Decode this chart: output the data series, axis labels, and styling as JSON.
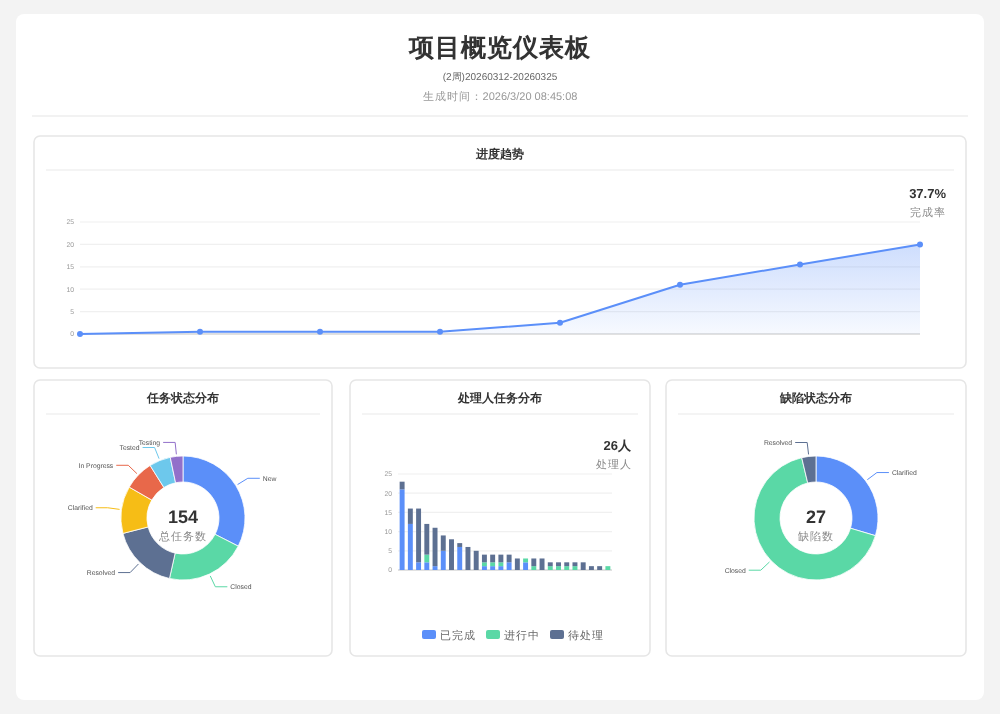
{
  "chart_data": [
    {
      "type": "other",
      "title": "项目概览仪表板",
      "subtitle": "(2周)20260312-20260325",
      "annotations": [
        "生成时间：2026/3/20 08:45:08"
      ]
    },
    {
      "type": "area",
      "title": "进度趋势",
      "categories": [
        null,
        null,
        null,
        null,
        null,
        null,
        null,
        null
      ],
      "values": [
        0,
        0.5,
        0.5,
        0.5,
        2.5,
        11,
        15.5,
        20
      ],
      "color": "#5b8ff9",
      "ylim": [
        0,
        25
      ],
      "yticks": [
        0,
        5,
        10,
        15,
        20,
        25
      ],
      "grid": "y",
      "marker": "circle",
      "annotations": [
        "37.7%",
        "完成率"
      ]
    },
    {
      "type": "donut",
      "title": "任务状态分布",
      "categories": [
        "New",
        "Closed",
        "Resolved",
        "Clarified",
        "In Progress",
        "Tested",
        "Testing"
      ],
      "values": [
        32.5,
        21,
        17.5,
        12.3,
        7.8,
        5.6,
        3.3
      ],
      "colors": [
        "#5b8ff9",
        "#5ad8a6",
        "#5d7092",
        "#f6bd16",
        "#e8684a",
        "#6dc8ec",
        "#9270ca"
      ],
      "annotations": [
        "154",
        "总任务数"
      ]
    },
    {
      "type": "bar",
      "title": "处理人任务分布",
      "stacked": true,
      "categories": [
        null,
        null,
        null,
        null,
        null,
        null,
        null,
        null,
        null,
        null,
        null,
        null,
        null,
        null,
        null,
        null,
        null,
        null,
        null,
        null,
        null,
        null,
        null,
        null,
        null,
        null
      ],
      "series": [
        {
          "name": "已完成",
          "color": "#5b8ff9",
          "values": [
            21,
            12,
            2,
            2,
            1,
            5,
            0,
            6,
            0,
            0,
            1,
            1,
            1,
            2,
            0,
            2,
            0,
            0,
            0,
            0,
            0,
            0,
            0,
            0,
            0,
            0
          ]
        },
        {
          "name": "进行中",
          "color": "#5ad8a6",
          "values": [
            0,
            0,
            0,
            2,
            0,
            0,
            0,
            0,
            0,
            0,
            1,
            1,
            1,
            0,
            0,
            1,
            1,
            0,
            1,
            1,
            1,
            1,
            0,
            0,
            0,
            1
          ]
        },
        {
          "name": "待处理",
          "color": "#5d7092",
          "values": [
            2,
            4,
            14,
            8,
            10,
            4,
            8,
            1,
            6,
            5,
            2,
            2,
            2,
            2,
            3,
            0,
            2,
            3,
            1,
            1,
            1,
            1,
            2,
            1,
            1,
            0
          ]
        }
      ],
      "ylim": [
        0,
        25
      ],
      "yticks": [
        0,
        5,
        10,
        15,
        20,
        25
      ],
      "grid": "y",
      "legend": "bottom",
      "annotations": [
        "26人",
        "处理人"
      ]
    },
    {
      "type": "donut",
      "title": "缺陷状态分布",
      "categories": [
        "Clarified",
        "Closed",
        "Resolved"
      ],
      "values": [
        29.6,
        66.7,
        3.7
      ],
      "colors": [
        "#5b8ff9",
        "#5ad8a6",
        "#5d7092"
      ],
      "annotations": [
        "27",
        "缺陷数"
      ]
    }
  ]
}
